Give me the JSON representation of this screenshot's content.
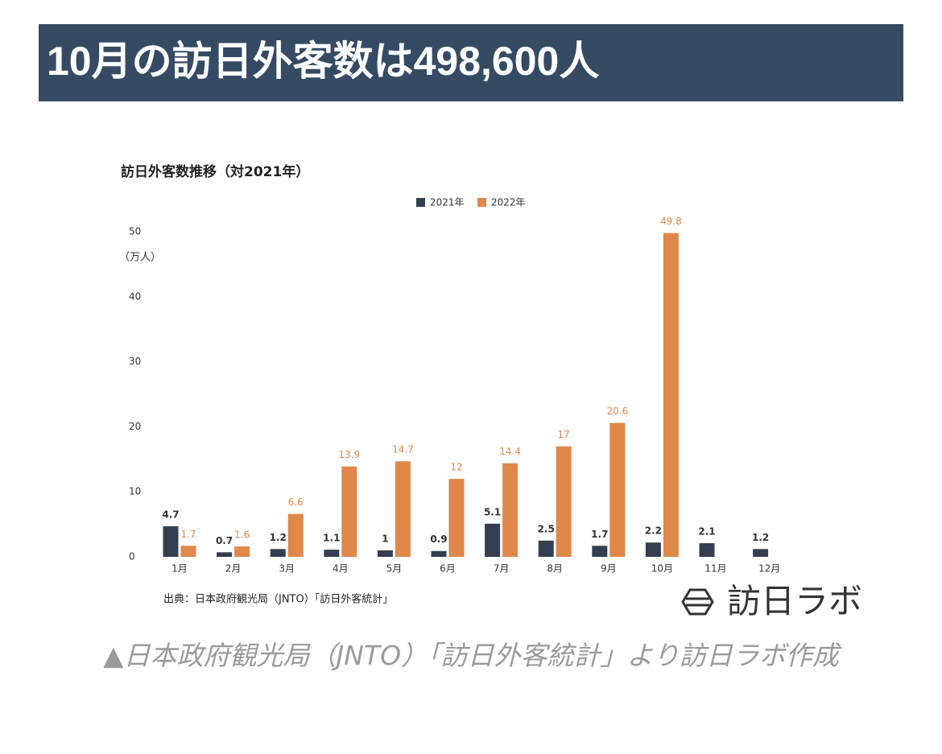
{
  "header": {
    "title": "10月の訪日外客数は498,600人"
  },
  "chart_data": {
    "type": "bar",
    "title": "訪日外客数推移（対2021年）",
    "y_label": "（万人）",
    "categories": [
      "1月",
      "2月",
      "3月",
      "4月",
      "5月",
      "6月",
      "7月",
      "8月",
      "9月",
      "10月",
      "11月",
      "12月"
    ],
    "series": [
      {
        "name": "2021年",
        "color": "#333f50",
        "values": [
          4.7,
          0.7,
          1.2,
          1.1,
          1,
          0.9,
          5.1,
          2.5,
          1.7,
          2.2,
          2.1,
          1.2
        ]
      },
      {
        "name": "2022年",
        "color": "#e0874a",
        "values": [
          1.7,
          1.6,
          6.6,
          13.9,
          14.7,
          12,
          14.4,
          17,
          20.6,
          49.8,
          null,
          null
        ]
      }
    ],
    "ylim": [
      0,
      50
    ],
    "yticks": [
      0,
      10,
      20,
      30,
      40,
      50
    ],
    "grid": false,
    "legend": "top",
    "source": "出典：日本政府観光局（JNTO）「訪日外客統計」"
  },
  "logo": "訪日ラボ",
  "caption": "▲日本政府観光局（JNTO）「訪日外客統計」より訪日ラボ作成"
}
